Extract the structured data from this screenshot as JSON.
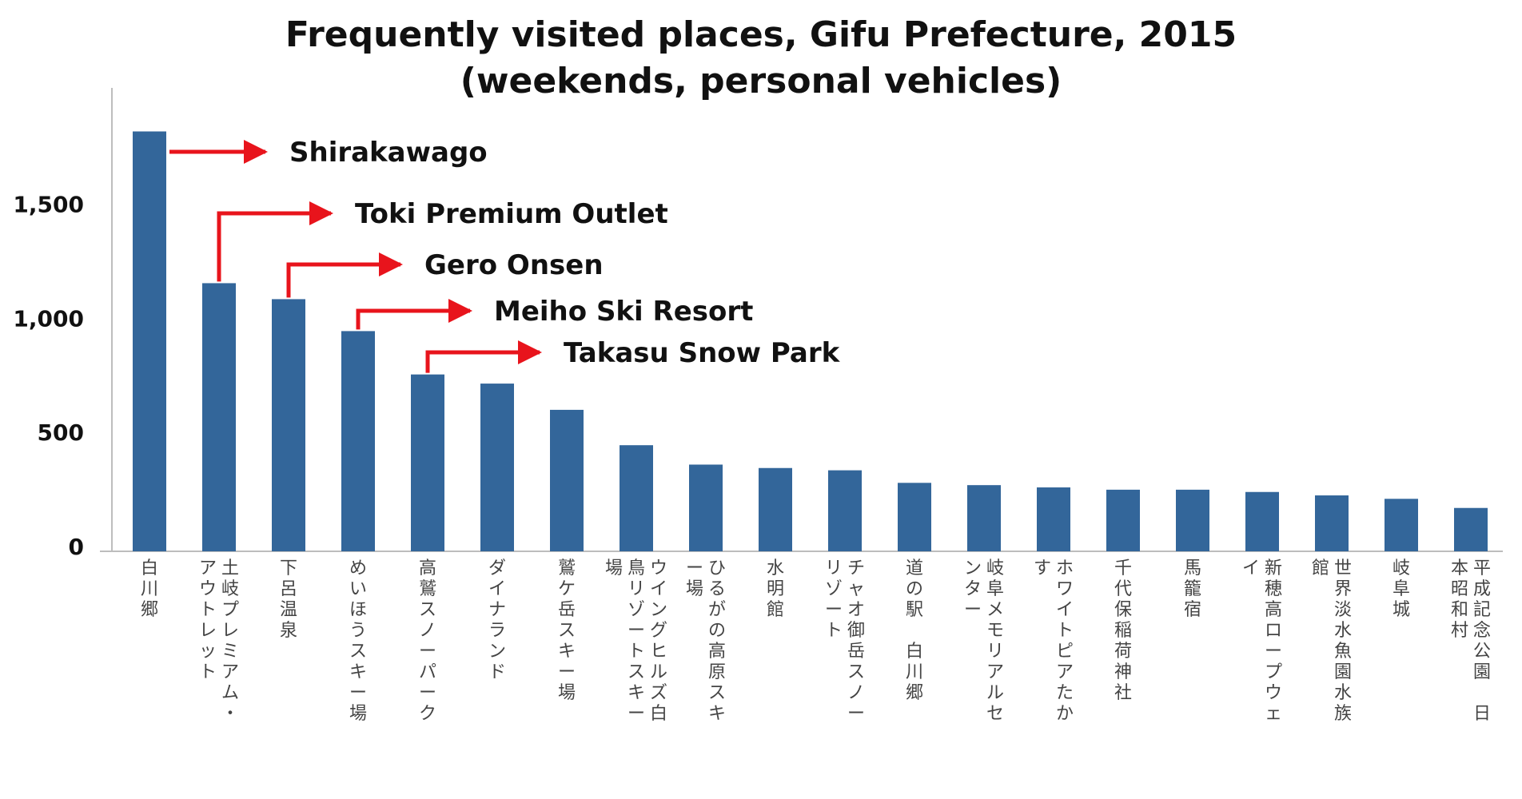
{
  "chart_data": {
    "type": "bar",
    "title": "Frequently visited places, Gifu Prefecture, 2015",
    "subtitle": "(weekends, personal vehicles)",
    "xlabel": "",
    "ylabel": "",
    "ylim": [
      0,
      2000
    ],
    "yticks": [
      0,
      500,
      1000,
      1500
    ],
    "ytick_labels": [
      "0",
      "500",
      "1,000",
      "1,500"
    ],
    "grid": false,
    "bar_color": "#33669a",
    "arrow_color": "#e8141c",
    "categories": [
      "白川郷",
      "土岐プレミアム・アウトレット",
      "下呂温泉",
      "めいほうスキー場",
      "高鷲スノーパーク",
      "ダイナランド",
      "鷲ケ岳スキー場",
      "ウイングヒルズ白鳥リゾートスキー場",
      "ひるがの高原スキー場",
      "水明館",
      "チャオ御岳スノーリゾート",
      "道の駅　白川郷",
      "岐阜メモリアルセンター",
      "ホワイトピアたかす",
      "千代保稲荷神社",
      "馬籠宿",
      "新穂高ロープウェイ",
      "世界淡水魚園水族館",
      "岐阜城",
      "平成記念公園　日本昭和村"
    ],
    "values": [
      1840,
      1175,
      1105,
      965,
      775,
      735,
      620,
      465,
      380,
      365,
      355,
      300,
      290,
      280,
      270,
      270,
      260,
      245,
      230,
      190
    ],
    "annotations": [
      {
        "text": "Shirakawago",
        "bar_index": 0
      },
      {
        "text": "Toki Premium Outlet",
        "bar_index": 1
      },
      {
        "text": "Gero Onsen",
        "bar_index": 2
      },
      {
        "text": "Meiho Ski Resort",
        "bar_index": 3
      },
      {
        "text": "Takasu Snow Park",
        "bar_index": 4
      }
    ]
  }
}
